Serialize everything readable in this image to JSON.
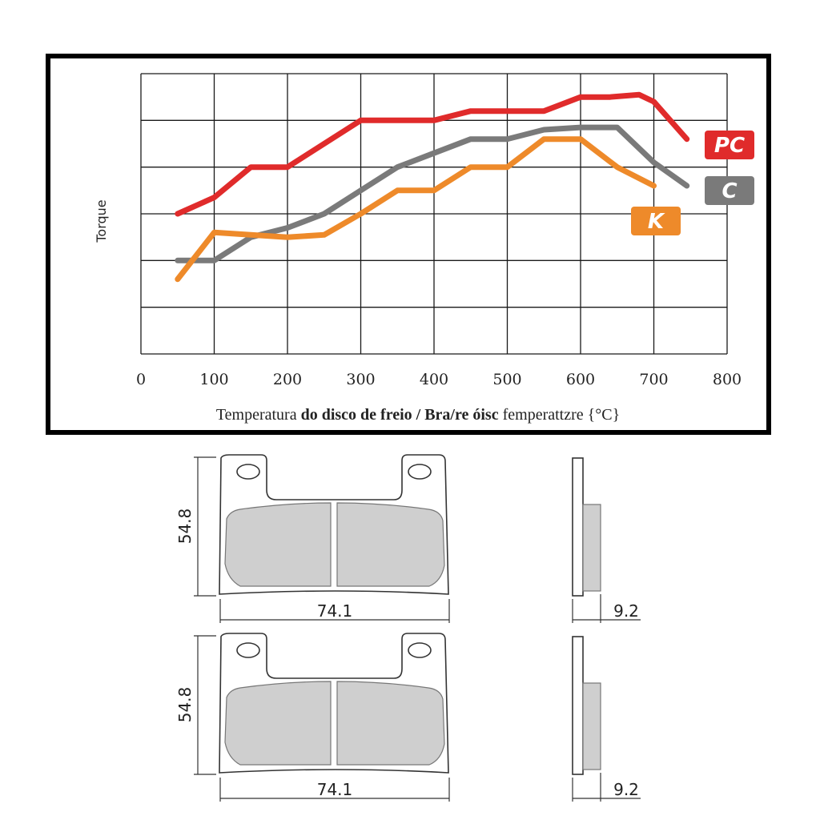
{
  "chart_data": {
    "type": "line",
    "ylabel": "Torque",
    "xlabel_parts": [
      "Temperatura ",
      "do disco de freio / Bra/re óisc",
      " femperattzre {°C}"
    ],
    "xlim": [
      0,
      800
    ],
    "ylim": [
      0,
      6
    ],
    "x_ticks": [
      "0",
      "100",
      "200",
      "300",
      "400",
      "500",
      "600",
      "700",
      "800"
    ],
    "grid": true,
    "series": [
      {
        "name": "PC",
        "color": "#e02b2b",
        "points": [
          [
            50,
            3.0
          ],
          [
            100,
            3.35
          ],
          [
            150,
            4.0
          ],
          [
            200,
            4.0
          ],
          [
            300,
            5.0
          ],
          [
            400,
            5.0
          ],
          [
            450,
            5.2
          ],
          [
            550,
            5.2
          ],
          [
            600,
            5.5
          ],
          [
            640,
            5.5
          ],
          [
            680,
            5.55
          ],
          [
            700,
            5.4
          ],
          [
            745,
            4.6
          ]
        ]
      },
      {
        "name": "C",
        "color": "#7a7a7a",
        "points": [
          [
            50,
            2.0
          ],
          [
            100,
            2.0
          ],
          [
            150,
            2.5
          ],
          [
            200,
            2.7
          ],
          [
            250,
            3.0
          ],
          [
            300,
            3.5
          ],
          [
            350,
            4.0
          ],
          [
            400,
            4.3
          ],
          [
            450,
            4.6
          ],
          [
            500,
            4.6
          ],
          [
            550,
            4.8
          ],
          [
            600,
            4.85
          ],
          [
            650,
            4.85
          ],
          [
            700,
            4.1
          ],
          [
            745,
            3.6
          ]
        ]
      },
      {
        "name": "K",
        "color": "#ee8a2a",
        "points": [
          [
            50,
            1.6
          ],
          [
            100,
            2.6
          ],
          [
            200,
            2.5
          ],
          [
            250,
            2.55
          ],
          [
            300,
            3.0
          ],
          [
            350,
            3.5
          ],
          [
            400,
            3.5
          ],
          [
            450,
            4.0
          ],
          [
            500,
            4.0
          ],
          [
            550,
            4.6
          ],
          [
            600,
            4.6
          ],
          [
            650,
            4.0
          ],
          [
            700,
            3.6
          ]
        ]
      }
    ],
    "legend_badges": [
      "PC",
      "C",
      "K"
    ]
  },
  "drawing": {
    "height_label": "54.8",
    "width_label": "74.1",
    "thickness_label": "9.2"
  }
}
